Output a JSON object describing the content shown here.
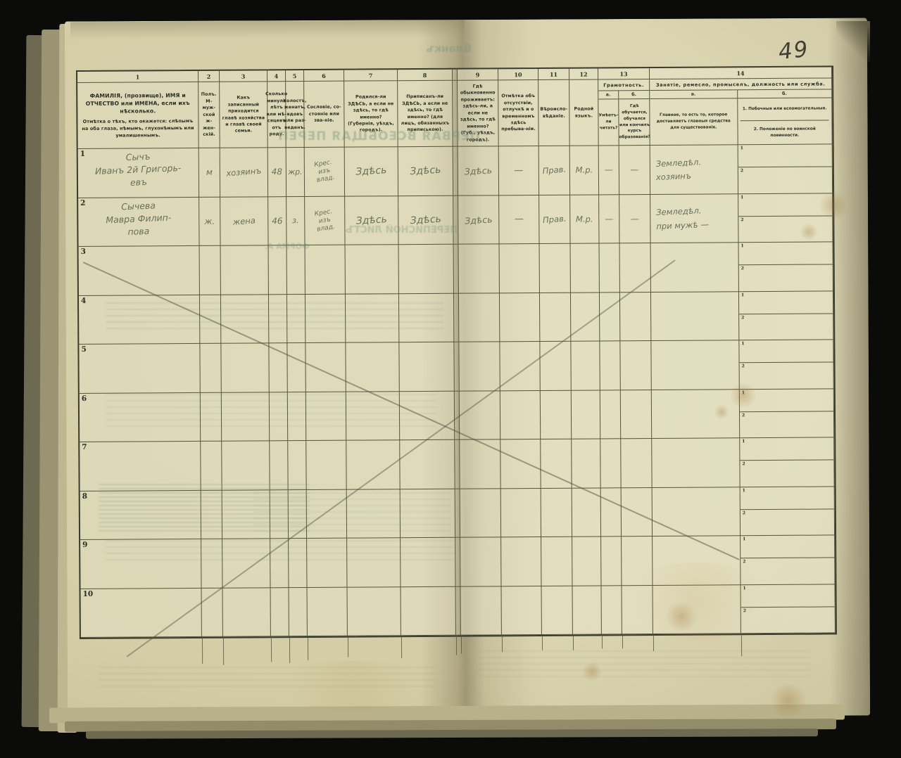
{
  "page": {
    "number": "49"
  },
  "bleedthrough": {
    "blank": "Бланкъ",
    "title": "ПЕРВАЯ ВСЕОБЩАЯ ПЕРЕП",
    "form_line1": "ПЕРЕПИСНОЙ ЛИСТЪ",
    "form_line2": "ФОРМА А."
  },
  "table": {
    "side_markers": [
      "1",
      "2"
    ],
    "columns": [
      {
        "num": "1",
        "label_a": "ФАМИЛІЯ, (прозвище), ИМЯ и ОТЧЕСТВО или ИМЕНА, если ихъ нѣсколько.",
        "label_b": "Отмѣтка о тѣхъ, кто окажется: слѣпымъ на оба глаза, нѣмымъ, глухонѣмымъ или умалишеннымъ."
      },
      {
        "num": "2",
        "label": "Полъ. М-муж-ской ж-жен-скій."
      },
      {
        "num": "3",
        "label": "Какъ записанный приходится главѣ хозяйства и главѣ своей семьи."
      },
      {
        "num": "4",
        "label": "Сколько минуло лѣтъ или мѣ-сяцевъ отъ роду."
      },
      {
        "num": "5",
        "label": "Холостъ, женатъ, вдовъ или раз-веденъ."
      },
      {
        "num": "6",
        "label": "Сословіе, со-стояніе или зва-ніе."
      },
      {
        "num": "7",
        "label": "Родился-ли ЗДѢСЬ, а если не здѣсь, то гдѣ именно? (Губернія, уѣздъ, городъ)."
      },
      {
        "num": "8",
        "label": "Приписанъ-ли ЗДѢСЬ, а если не здѣсь, то гдѣ именно? (для лицъ, обязанныхъ припиською)."
      },
      {
        "num": "9",
        "label": "Гдѣ обыкновенно проживаетъ: здѣсь-ли, а если не здѣсь, то гдѣ именно? (Губ., уѣздъ, городъ)."
      },
      {
        "num": "10",
        "label": "Отмѣтка объ отсутствіи, отлучкѣ и о временномъ здѣсь пребыва-ніи."
      },
      {
        "num": "11",
        "label": "Вѣроисло-вѣданіе."
      },
      {
        "num": "12",
        "label": "Родной языкъ."
      }
    ],
    "col13": {
      "num": "13",
      "group": "Грамотность.",
      "a_letter": "а.",
      "b_letter": "б.",
      "a_label": "Умѣетъ-ли читать?",
      "b_label": "Гдѣ обучается, обучался или кончилъ курсъ образованія?"
    },
    "col14": {
      "num": "14",
      "group": "Занятіе, ремесло, промыселъ, должность или служба.",
      "a_letter": "а.",
      "b_letter": "б.",
      "a_label": "Главное, то есть то, которое доставляетъ главныя средства для существованія.",
      "b1_label": "1. Побочныя или вспомогательныя.",
      "b2_label": "2. Положеніе по воинской повинности."
    }
  },
  "rows": [
    {
      "num": "1",
      "name": [
        "Сычъ",
        "Иванъ 2й Григорь-",
        "евъ"
      ],
      "sex": "м",
      "relation": "хозяинъ",
      "age": "48",
      "marital": "жр.",
      "estate": [
        "Крес.",
        "изъ",
        "влад."
      ],
      "born": "Здѣсь",
      "registered": "Здѣсь",
      "resides": "Здѣсь",
      "absence": "—",
      "religion": "Прав.",
      "language": "М.р.",
      "reads": "—",
      "education": "—",
      "occupation_main": [
        "Земледѣл.",
        "хозяинъ"
      ],
      "side1": "",
      "side2": ""
    },
    {
      "num": "2",
      "name": [
        "Сычева",
        "Мавра Филип-",
        "пова"
      ],
      "sex": "ж.",
      "relation": "жена",
      "age": "46",
      "marital": "з.",
      "estate": [
        "Крес.",
        "изъ",
        "влад."
      ],
      "born": "Здѣсь",
      "registered": "Здѣсь",
      "resides": "Здѣсь",
      "absence": "—",
      "religion": "Прав.",
      "language": "М.р.",
      "reads": "—",
      "education": "—",
      "occupation_main": [
        "Земледѣл.",
        "при мужѣ —"
      ],
      "side1": "",
      "side2": ""
    },
    {
      "num": "3"
    },
    {
      "num": "4"
    },
    {
      "num": "5"
    },
    {
      "num": "6"
    },
    {
      "num": "7"
    },
    {
      "num": "8"
    },
    {
      "num": "9"
    },
    {
      "num": "10"
    }
  ]
}
